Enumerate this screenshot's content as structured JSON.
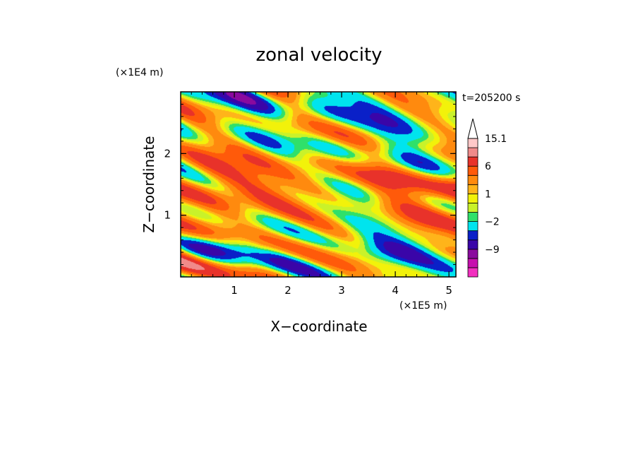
{
  "chart_data": {
    "type": "heatmap",
    "title": "zonal velocity",
    "xlabel": "X−coordinate",
    "ylabel": "Z−coordinate",
    "x_unit": "(×1E5 m)",
    "y_unit": "(×1E4 m)",
    "time_label": "t=205200 s",
    "xlim": [
      0,
      5.13
    ],
    "ylim": [
      0,
      3.0
    ],
    "x_ticks": [
      1,
      2,
      3,
      4,
      5
    ],
    "y_ticks": [
      1,
      2
    ],
    "colorbar": {
      "labels": [
        "15.1",
        "6",
        "1",
        "−2",
        "−9"
      ],
      "label_values": [
        15.1,
        6,
        1,
        -2,
        -9
      ],
      "levels": [
        -15,
        -12,
        -9,
        -6,
        -4,
        -2,
        -1,
        0,
        1,
        2,
        4,
        6,
        9,
        12,
        15.1
      ],
      "colors": [
        "#f22fbf",
        "#c60fae",
        "#8a0a9e",
        "#3a05a8",
        "#0a20c8",
        "#00e4ee",
        "#2fe06a",
        "#c9f22a",
        "#f2f20a",
        "#ffb41a",
        "#ff8a0e",
        "#ff5a0a",
        "#e8322a",
        "#f08a8a",
        "#ffc8c8"
      ],
      "extend": "max"
    },
    "field_note": "contour-filled 2D field of zonal velocity (values roughly −15 to 15)"
  }
}
